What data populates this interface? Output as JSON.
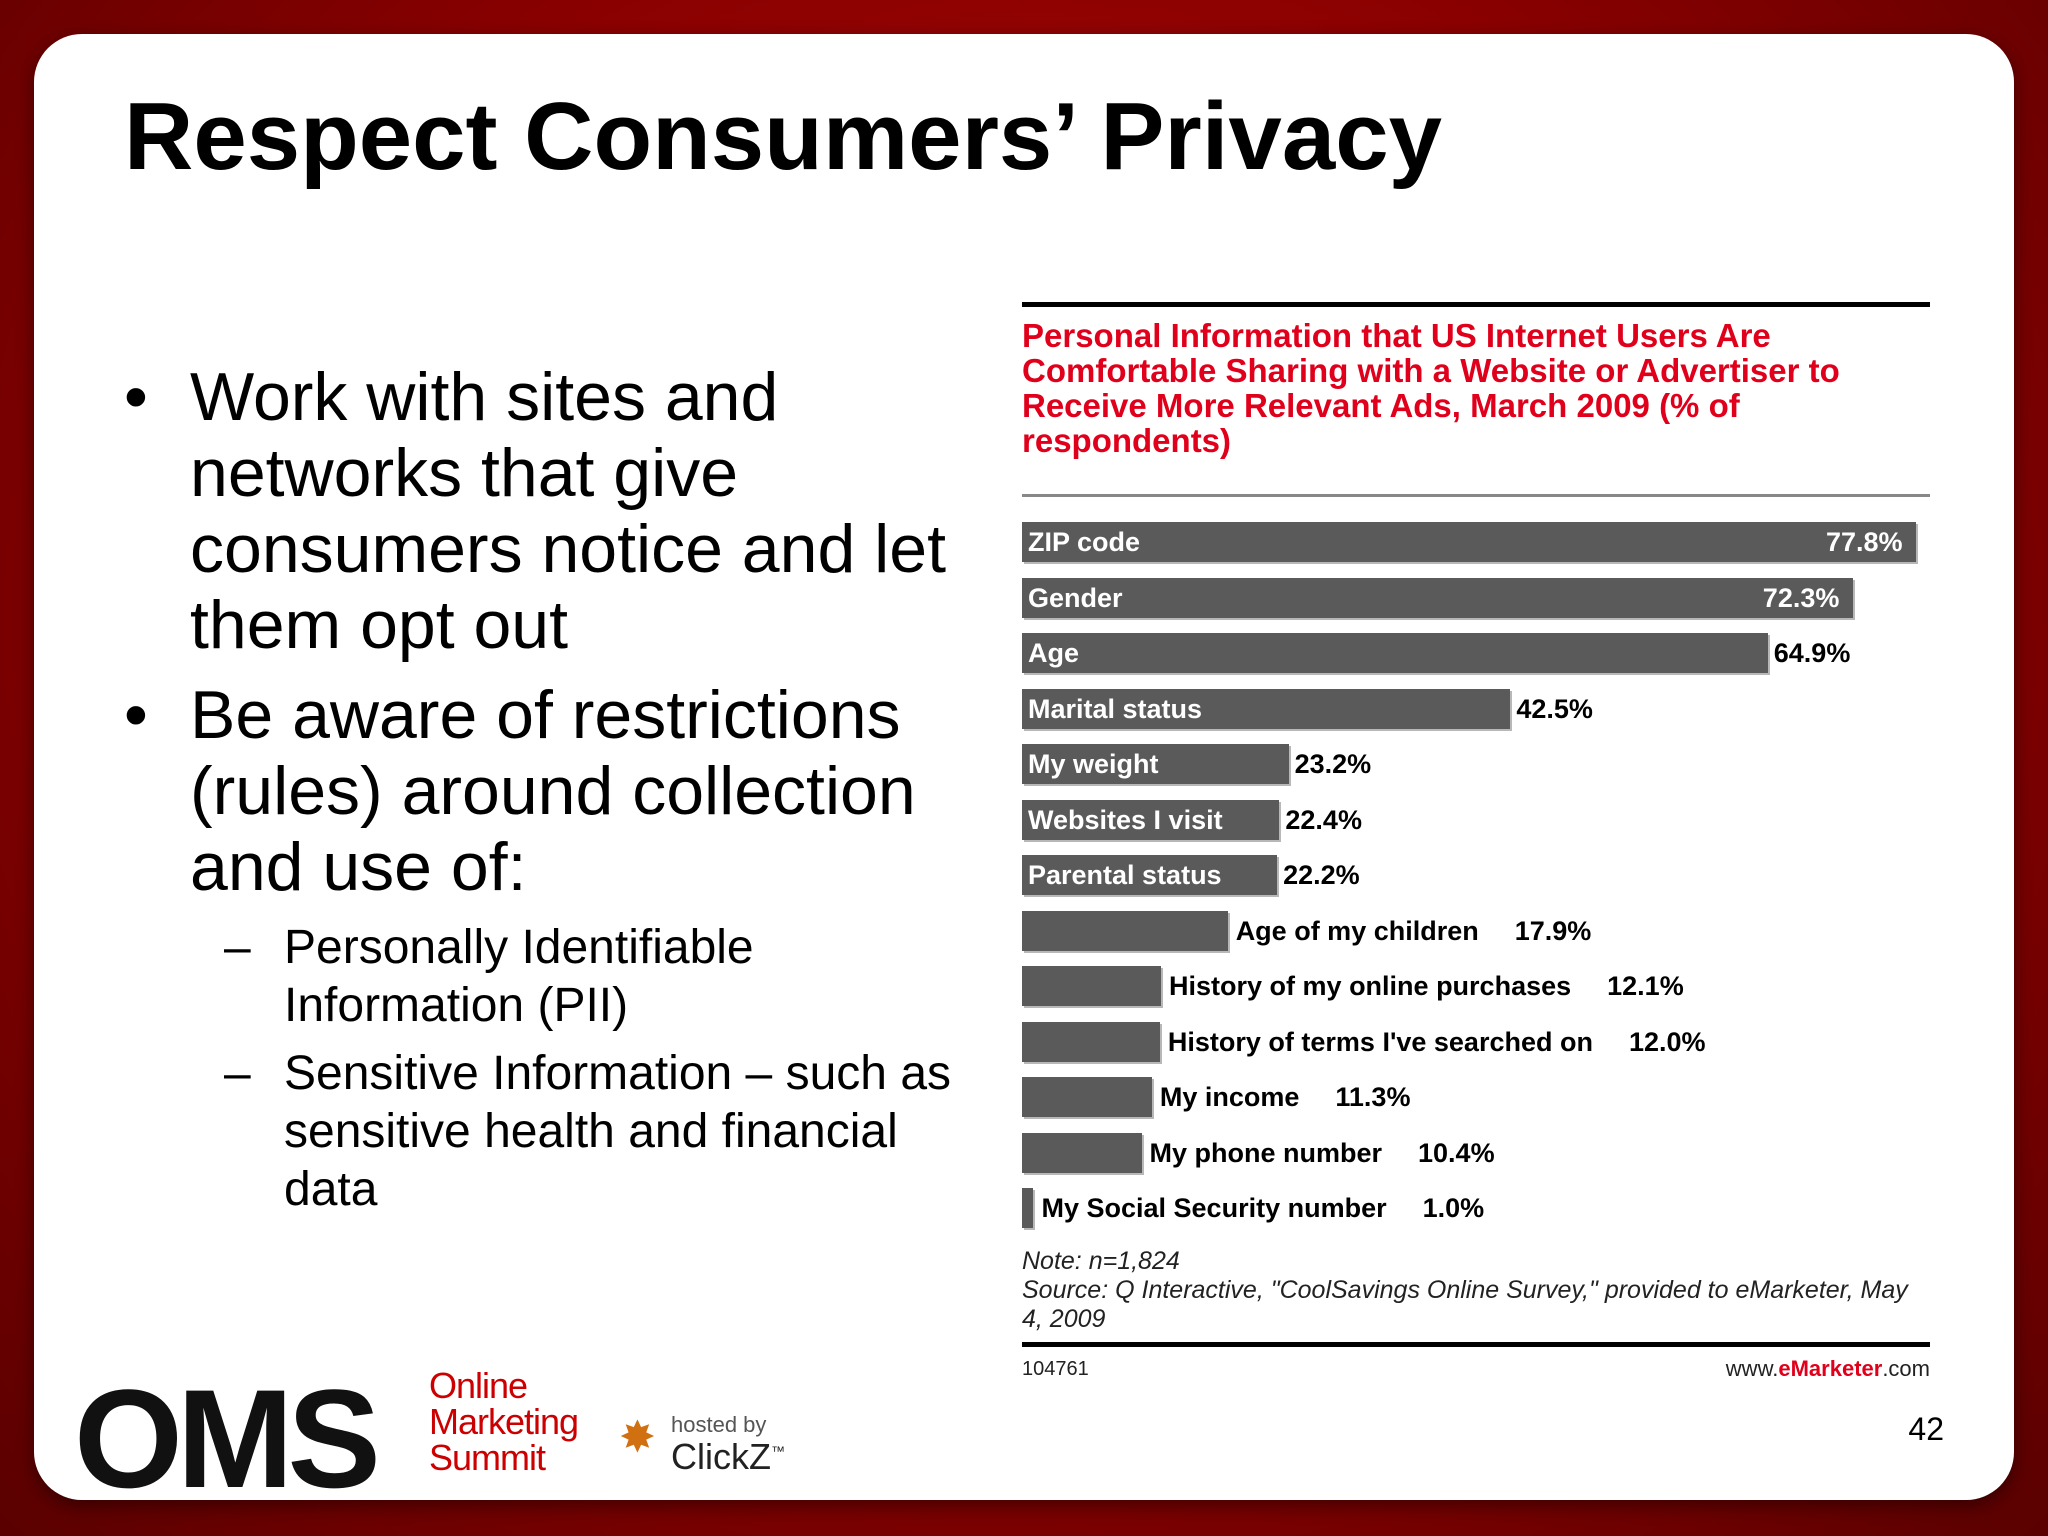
{
  "slide": {
    "title": "Respect Consumers’ Privacy",
    "bullets": [
      "Work with sites and networks that give consumers notice and let them opt out",
      "Be aware of restrictions (rules) around collection and use of:"
    ],
    "subbullets": [
      "Personally Identifiable Information (PII)",
      "Sensitive Information – such as sensitive health and financial data"
    ],
    "bullet_marker": "•",
    "sub_marker": "–",
    "page_number": "42"
  },
  "logo": {
    "oms": "OMS",
    "line1": "Online",
    "line2": "Marketing",
    "line3": "Summit",
    "hosted_by": "hosted by",
    "clickz": "ClickZ",
    "tm": "™"
  },
  "chart_data": {
    "type": "bar",
    "orientation": "horizontal",
    "title": "Personal Information that US Internet Users Are Comfortable Sharing with a Website or Advertiser to Receive More Relevant Ads, March 2009 (% of respondents)",
    "categories": [
      "ZIP code",
      "Gender",
      "Age",
      "Marital status",
      "My weight",
      "Websites I visit",
      "Parental status",
      "Age of my children",
      "History of my online purchases",
      "History of terms I've searched on",
      "My income",
      "My phone number",
      "My Social Security number"
    ],
    "values": [
      77.8,
      72.3,
      64.9,
      42.5,
      23.2,
      22.4,
      22.2,
      17.9,
      12.1,
      12.0,
      11.3,
      10.4,
      1.0
    ],
    "value_labels": [
      "77.8%",
      "72.3%",
      "64.9%",
      "42.5%",
      "23.2%",
      "22.4%",
      "22.2%",
      "17.9%",
      "12.1%",
      "12.0%",
      "11.3%",
      "10.4%",
      "1.0%"
    ],
    "xlim": [
      0,
      77.8
    ],
    "note": "Note: n=1,824",
    "source": "Source: Q Interactive, \"CoolSavings Online Survey,\" provided to eMarketer, May 4, 2009",
    "code": "104761",
    "site_prefix": "www.",
    "site_brand": "eMarketer",
    "site_suffix": ".com",
    "colors": {
      "bar": "#5a5a5a",
      "title": "#e0001b"
    }
  }
}
